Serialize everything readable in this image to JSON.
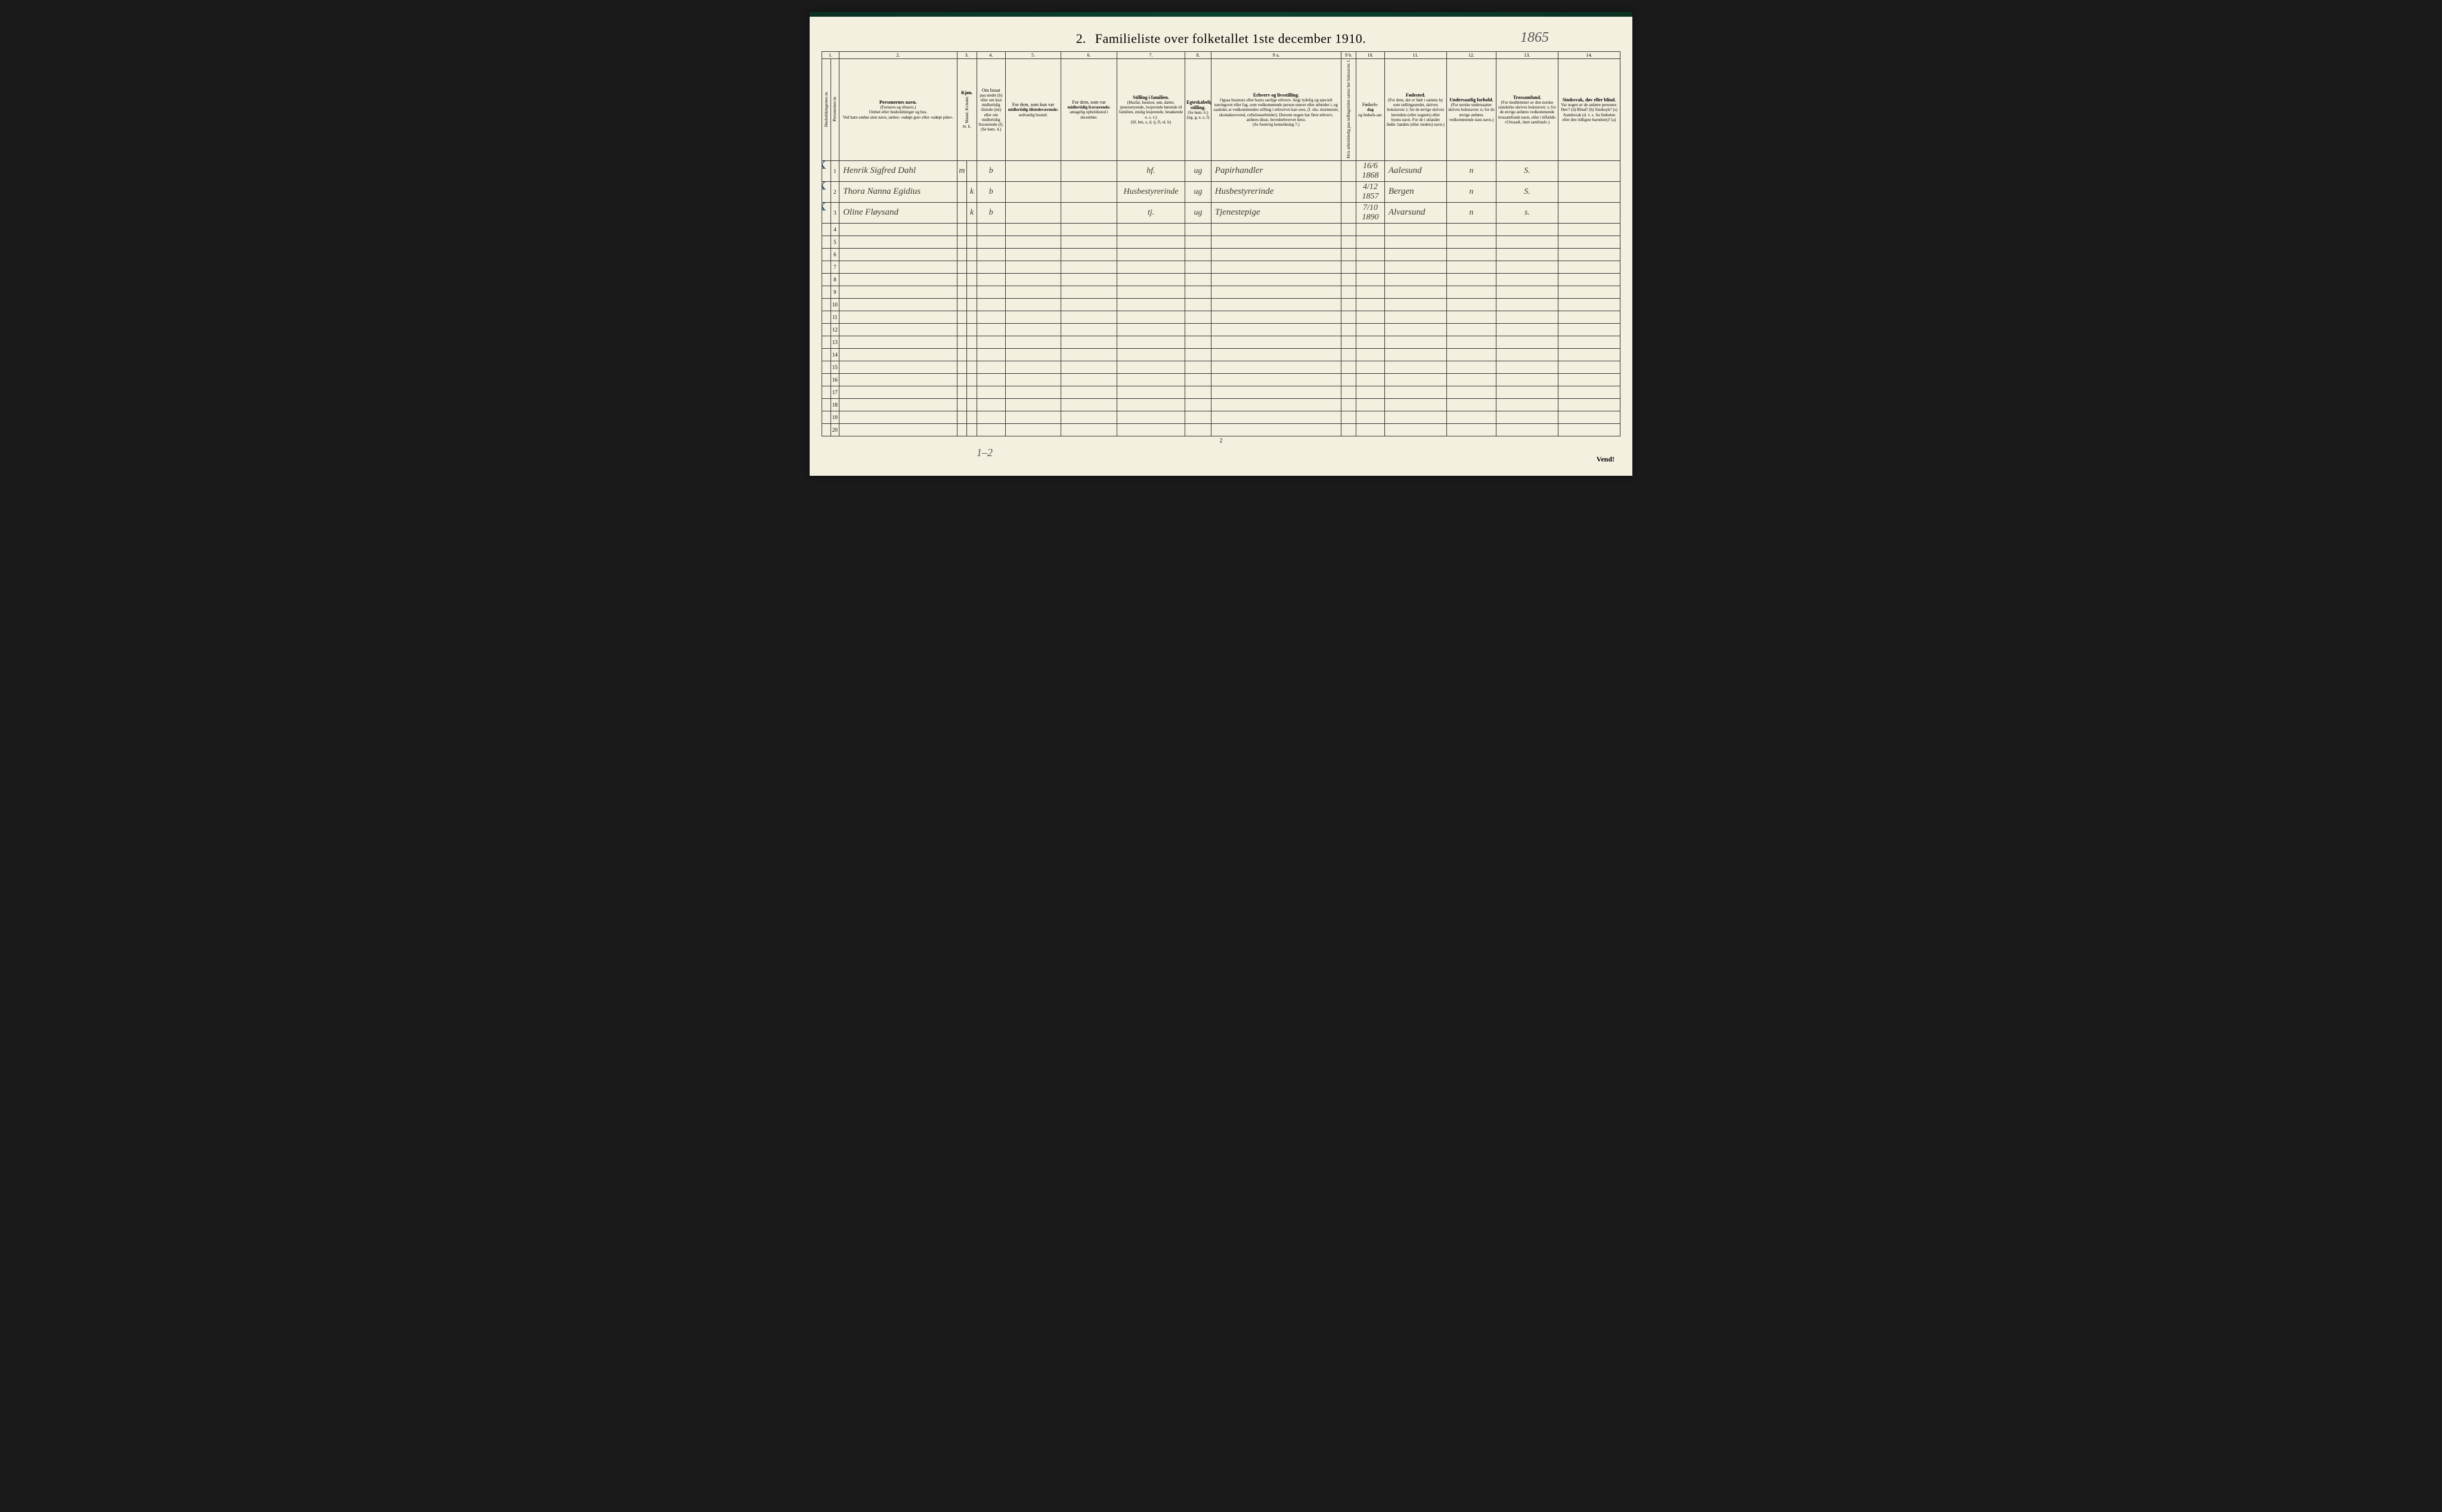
{
  "page": {
    "section_number": "2.",
    "title": "Familieliste over folketallet 1ste december 1910.",
    "annotation_year": "1865",
    "page_number": "2",
    "turn_text": "Vend!",
    "footer_annotation": "1–2"
  },
  "column_numbers": [
    "1.",
    "2.",
    "3.",
    "4.",
    "5.",
    "6.",
    "7.",
    "8.",
    "9 a.",
    "9 b.",
    "10.",
    "11.",
    "12.",
    "13.",
    "14."
  ],
  "headers": {
    "c1a": "Husholdningernes nr.",
    "c1b": "Personernes nr.",
    "c2_title": "Personernes navn.",
    "c2_sub1": "(Fornavn og tilnavn.)",
    "c2_sub2": "Ordnet efter husholdninger og hus.",
    "c2_sub3": "Ved barn endnu uten navn, sættes: «udøpt gut» eller «udøpt pike».",
    "c3_title": "Kjøn.",
    "c3_sub": "Mænd.  Kvinder.",
    "c3_mk": "m.  k.",
    "c4_title": "Om bosat",
    "c4_body": "paa stedet (b) eller om kun midlertidig tilstede (mt) eller om midlertidig fraværende (f). (Se bem. 4.)",
    "c5_title": "For dem, som kun var",
    "c5_bold": "midlertidig tilstedeværende:",
    "c5_sub": "sedvanlig bosted.",
    "c6_title": "For dem, som var",
    "c6_bold": "midlertidig fraværende:",
    "c6_sub": "antagelig opholdssted i december.",
    "c7_title": "Stilling i familien.",
    "c7_body": "(Husfar, husmor, søn, datter, tjenestetyende, losjerende hørende til familien, enslig losjerende, besøkende o. s. v.)",
    "c7_sub": "(hf, hm, s, d, tj, fl, el, b)",
    "c8_title": "Egteskabelig stilling.",
    "c8_sub": "(Se bem. 6.) (ug, g, e, s, f)",
    "c9a_title": "Erhverv og livsstilling.",
    "c9a_body": "Ogsaa husmors eller barns særlige erhverv. Angi tydelig og specielt næringsvei eller fag, som vedkommende person utøver eller arbeider i, og saaledes at vedkommendes stilling i erhvervet kan sees, (f. eks. murmester, skomakersvend, cellulosearbeider). Dersom nogen har flere erhverv, anføres disse, hovederhvervet først.",
    "c9a_sub": "(Se forøvrig bemerkning 7.)",
    "c9b": "Hvis arbeidsledig paa tællingstiden sættes her bokstaven: l.",
    "c10_title": "Fødsels-",
    "c10_bold": "dag",
    "c10_sub": "og fødsels-aar.",
    "c11_title": "Fødested.",
    "c11_body": "(For dem, der er født i samme by som tællingsstedet, skrives bokstaven: t; for de øvrige skrives herredets (eller sognets) eller byens navn. For de i utlandet fødte: landets (eller stedets) navn.)",
    "c12_title": "Undersaatlig forhold.",
    "c12_body": "(For norske undersaatter skrives bokstaven: n; for de øvrige anføres vedkommende stats navn.)",
    "c13_title": "Trossamfund.",
    "c13_body": "(For medlemmer av den norske statskirke skrives bokstaven: s; for de øvrige anføres vedkommende trossamfunds navn, eller i tilfælde: «Uttraadt, intet samfund».)",
    "c14_title": "Sindssvak, døv eller blind.",
    "c14_body": "Var nogen av de anførte personer: Døv? (d) Blind? (b) Sindssyk? (s) Aandssvak (d. v. s. fra fødselen eller den tidligste barndom)? (a)"
  },
  "col_widths": {
    "c1a": 14,
    "c1b": 14,
    "c2": 190,
    "c3m": 16,
    "c3k": 16,
    "c4": 46,
    "c5": 90,
    "c6": 90,
    "c7": 110,
    "c8": 42,
    "c9a": 210,
    "c9b": 24,
    "c10": 46,
    "c11": 100,
    "c12": 80,
    "c13": 100,
    "c14": 100
  },
  "rows": [
    {
      "n": "1",
      "mark": "X",
      "name": "Henrik Sigfred Dahl",
      "sex_m": "m",
      "sex_k": "",
      "c4": "b",
      "c7": "hf.",
      "c8": "ug",
      "c9": "Papirhandler",
      "c10": "16/6 1868",
      "c11": "Aalesund",
      "c12": "n",
      "c13": "S."
    },
    {
      "n": "2",
      "mark": "X",
      "name": "Thora Nanna Egidius",
      "sex_m": "",
      "sex_k": "k",
      "c4": "b",
      "c7": "Husbestyrerinde",
      "c8": "ug",
      "c9": "Husbestyrerinde",
      "c10": "4/12 1857",
      "c11": "Bergen",
      "c12": "n",
      "c13": "S."
    },
    {
      "n": "3",
      "mark": "X",
      "name": "Oline Fløysand",
      "sex_m": "",
      "sex_k": "k",
      "c4": "b",
      "c7": "tj.",
      "c8": "ug",
      "c9": "Tjenestepige",
      "c10": "7/10 1890",
      "c11": "Alvarsund",
      "c12": "n",
      "c13": "s."
    },
    {
      "n": "4"
    },
    {
      "n": "5"
    },
    {
      "n": "6"
    },
    {
      "n": "7"
    },
    {
      "n": "8"
    },
    {
      "n": "9"
    },
    {
      "n": "10"
    },
    {
      "n": "11"
    },
    {
      "n": "12"
    },
    {
      "n": "13"
    },
    {
      "n": "14"
    },
    {
      "n": "15"
    },
    {
      "n": "16"
    },
    {
      "n": "17"
    },
    {
      "n": "18"
    },
    {
      "n": "19"
    },
    {
      "n": "20"
    }
  ],
  "colors": {
    "paper": "#f4f0e0",
    "ink": "#333333",
    "handwriting": "#3a3a2a",
    "blue_pencil": "#3a5a7a"
  }
}
